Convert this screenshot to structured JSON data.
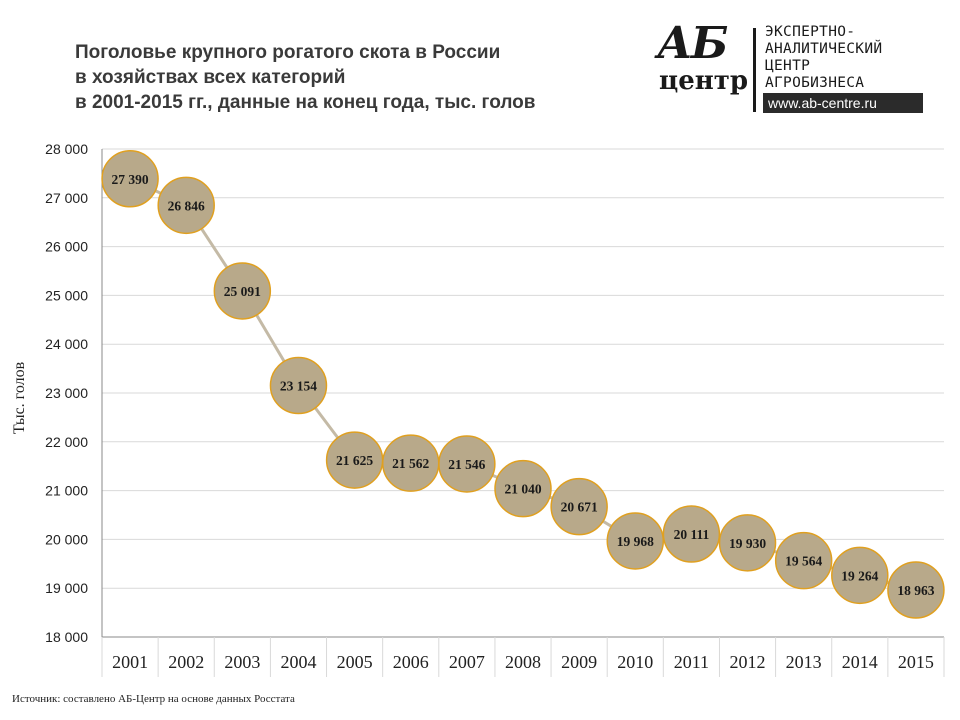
{
  "title_lines": [
    "Поголовье крупного рогатого скота в России",
    "в хозяйствах всех категорий",
    "в 2001-2015 гг., данные на конец года, тыс. голов"
  ],
  "logo": {
    "mark_top": "АБ",
    "mark_bottom": "центр",
    "lines": [
      "ЭКСПЕРТНО-",
      "АНАЛИТИЧЕСКИЙ",
      "ЦЕНТР",
      "АГРОБИЗНЕСА"
    ],
    "url": "www.ab-centre.ru"
  },
  "source": "Источник: составлено АБ-Центр на основе данных Росстата",
  "chart_data": {
    "type": "line",
    "title": "Поголовье крупного рогатого скота в России в хозяйствах всех категорий в 2001-2015 гг., данные на конец года, тыс. голов",
    "xlabel": "",
    "ylabel": "Тыс. голов",
    "categories": [
      "2001",
      "2002",
      "2003",
      "2004",
      "2005",
      "2006",
      "2007",
      "2008",
      "2009",
      "2010",
      "2011",
      "2012",
      "2013",
      "2014",
      "2015"
    ],
    "values": [
      27390,
      26846,
      25091,
      23154,
      21625,
      21562,
      21546,
      21040,
      20671,
      19968,
      20111,
      19930,
      19564,
      19264,
      18963
    ],
    "data_labels": [
      "27 390",
      "26 846",
      "25 091",
      "23 154",
      "21 625",
      "21 562",
      "21 546",
      "21 040",
      "20 671",
      "19 968",
      "20 111",
      "19 930",
      "19 564",
      "19 264",
      "18 963"
    ],
    "ylim": [
      18000,
      28000
    ],
    "yticks": [
      18000,
      19000,
      20000,
      21000,
      22000,
      23000,
      24000,
      25000,
      26000,
      27000,
      28000
    ],
    "ytick_labels": [
      "18 000",
      "19 000",
      "20 000",
      "21 000",
      "22 000",
      "23 000",
      "24 000",
      "25 000",
      "26 000",
      "27 000",
      "28 000"
    ],
    "grid": true,
    "legend": "none",
    "colors": {
      "line": "#c4baa6",
      "marker_fill": "#b8a98a",
      "marker_stroke": "#e0a020",
      "grid": "#d9d9d9",
      "axis": "#888888"
    }
  }
}
